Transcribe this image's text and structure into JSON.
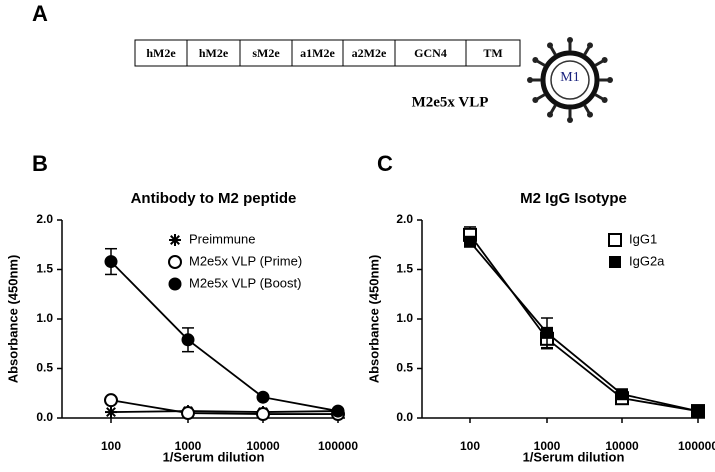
{
  "diagram": {
    "panel": "A",
    "segments": [
      "hM2e",
      "hM2e",
      "sM2e",
      "a1M2e",
      "a2M2e",
      "GCN4",
      "TM"
    ],
    "caption": "M2e5x VLP",
    "particle_label": "M1"
  },
  "chart_data": [
    {
      "type": "line",
      "panel": "B",
      "title": "Antibody to M2 peptide",
      "x_label": "1/Serum dilution",
      "y_label": "Absorbance (450nm)",
      "categories": [
        "100",
        "1000",
        "10000",
        "100000"
      ],
      "ylim": [
        0,
        2.0
      ],
      "yticks": [
        {
          "value": 0,
          "label": "0.0"
        },
        {
          "value": 0.5,
          "label": "0.5"
        },
        {
          "value": 1.0,
          "label": "1.0"
        },
        {
          "value": 1.5,
          "label": "1.5"
        },
        {
          "value": 2.0,
          "label": "2.0"
        }
      ],
      "legend": "upper right",
      "series": [
        {
          "name": "Preimmune",
          "color": "#000000",
          "marker": "asterisk",
          "values": [
            0.06,
            0.07,
            0.06,
            0.07
          ]
        },
        {
          "name": "M2e5x VLP (Prime)",
          "color": "#000000",
          "marker": "open-circle",
          "values": [
            0.18,
            0.05,
            0.04,
            0.04
          ]
        },
        {
          "name": "M2e5x VLP (Boost)",
          "color": "#000000",
          "marker": "filled-circle",
          "values": [
            1.58,
            0.79,
            0.21,
            0.07
          ],
          "errors": [
            0.13,
            0.12,
            0.02,
            0.02
          ]
        }
      ]
    },
    {
      "type": "line",
      "panel": "C",
      "title": "M2 IgG Isotype",
      "x_label": "1/Serum dilution",
      "y_label": "Absorbance (450nm)",
      "categories": [
        "100",
        "1000",
        "10000",
        "100000"
      ],
      "ylim": [
        0,
        2.0
      ],
      "yticks": [
        {
          "value": 0,
          "label": "0.0"
        },
        {
          "value": 0.5,
          "label": "0.5"
        },
        {
          "value": 1.0,
          "label": "1.0"
        },
        {
          "value": 1.5,
          "label": "1.5"
        },
        {
          "value": 2.0,
          "label": "2.0"
        }
      ],
      "legend": "upper right",
      "series": [
        {
          "name": "IgG1",
          "color": "#000000",
          "marker": "open-square",
          "values": [
            1.85,
            0.8,
            0.2,
            0.07
          ],
          "errors": [
            0.08,
            0.1,
            0.04,
            0.02
          ]
        },
        {
          "name": "IgG2a",
          "color": "#000000",
          "marker": "filled-square",
          "values": [
            1.78,
            0.86,
            0.24,
            0.07
          ],
          "errors": [
            0.05,
            0.15,
            0.05,
            0.02
          ]
        }
      ]
    }
  ]
}
